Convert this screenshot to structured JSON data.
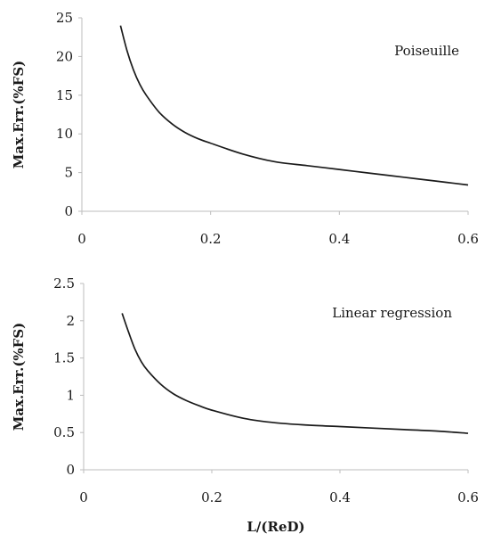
{
  "chart_data": [
    {
      "type": "line",
      "title": "",
      "xlabel": "",
      "ylabel": "Max.Err.(%FS)",
      "annotation": "Poiseuille",
      "xlim": [
        0,
        0.6
      ],
      "ylim": [
        0,
        25
      ],
      "x_ticks": [
        0,
        0.2,
        0.4,
        0.6
      ],
      "x_tick_labels": [
        "0",
        "0.2",
        "0.4",
        "0.6"
      ],
      "y_ticks": [
        0,
        5,
        10,
        15,
        20,
        25
      ],
      "y_tick_labels": [
        "0",
        "5",
        "10",
        "15",
        "20",
        "25"
      ],
      "grid": false,
      "series": [
        {
          "x": [
            0.06,
            0.07,
            0.08,
            0.09,
            0.1,
            0.12,
            0.14,
            0.16,
            0.18,
            0.2,
            0.25,
            0.3,
            0.35,
            0.4,
            0.45,
            0.5,
            0.55,
            0.6
          ],
          "y": [
            24.0,
            20.8,
            18.3,
            16.4,
            15.0,
            12.8,
            11.3,
            10.2,
            9.4,
            8.8,
            7.4,
            6.4,
            5.9,
            5.4,
            4.9,
            4.4,
            3.9,
            3.4
          ]
        }
      ]
    },
    {
      "type": "line",
      "title": "",
      "xlabel": "L/(ReD)",
      "ylabel": "Max.Err.(%FS)",
      "annotation": "Linear regression",
      "xlim": [
        0,
        0.6
      ],
      "ylim": [
        0,
        2.5
      ],
      "x_ticks": [
        0,
        0.2,
        0.4,
        0.6
      ],
      "x_tick_labels": [
        "0",
        "0.2",
        "0.4",
        "0.6"
      ],
      "y_ticks": [
        0,
        0.5,
        1,
        1.5,
        2,
        2.5
      ],
      "y_tick_labels": [
        "0",
        "0.5",
        "1",
        "1.5",
        "2",
        "2.5"
      ],
      "grid": false,
      "series": [
        {
          "x": [
            0.06,
            0.07,
            0.08,
            0.09,
            0.1,
            0.12,
            0.14,
            0.16,
            0.18,
            0.2,
            0.25,
            0.3,
            0.35,
            0.4,
            0.45,
            0.5,
            0.55,
            0.6
          ],
          "y": [
            2.1,
            1.85,
            1.62,
            1.45,
            1.33,
            1.15,
            1.02,
            0.93,
            0.86,
            0.8,
            0.69,
            0.63,
            0.6,
            0.58,
            0.56,
            0.54,
            0.52,
            0.49
          ]
        }
      ]
    }
  ]
}
